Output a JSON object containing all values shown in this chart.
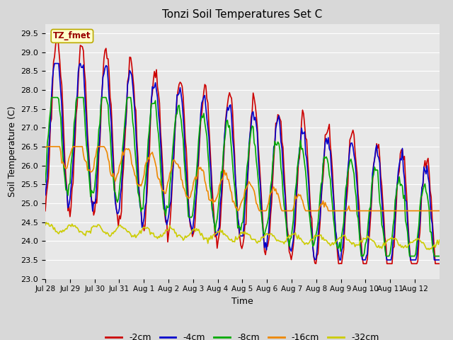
{
  "title": "Tonzi Soil Temperatures Set C",
  "xlabel": "Time",
  "ylabel": "Soil Temperature (C)",
  "ylim": [
    23.0,
    29.75
  ],
  "yticks": [
    23.0,
    23.5,
    24.0,
    24.5,
    25.0,
    25.5,
    26.0,
    26.5,
    27.0,
    27.5,
    28.0,
    28.5,
    29.0,
    29.5
  ],
  "background_color": "#d8d8d8",
  "plot_bg_color": "#e8e8e8",
  "grid_color": "#ffffff",
  "legend_label": "TZ_fmet",
  "legend_bg": "#ffffcc",
  "legend_border": "#bbaa00",
  "series_colors": {
    "-2cm": "#cc0000",
    "-4cm": "#0000cc",
    "-8cm": "#00aa00",
    "-16cm": "#ee8800",
    "-32cm": "#cccc00"
  },
  "series_linewidth": 1.2,
  "xtick_labels": [
    "Jul 28",
    "Jul 29",
    "Jul 30",
    "Jul 31",
    "Aug 1",
    "Aug 2",
    "Aug 3",
    "Aug 4",
    "Aug 5",
    "Aug 6",
    "Aug 7",
    "Aug 8",
    "Aug 9",
    "Aug 10",
    "Aug 11",
    "Aug 12"
  ],
  "n_points": 384
}
